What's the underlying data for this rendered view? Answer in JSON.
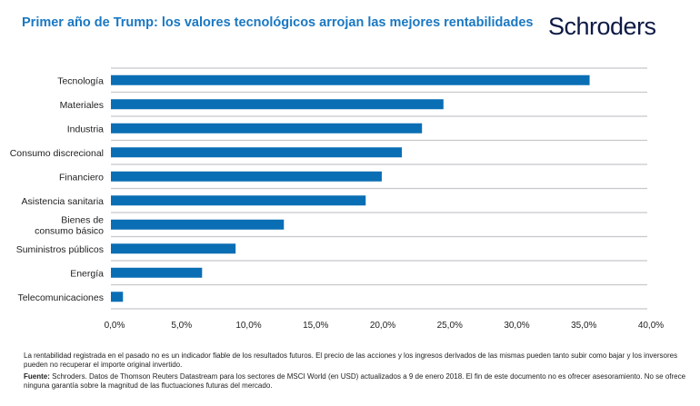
{
  "header": {
    "title": "Primer año de Trump: los valores tecnológicos arrojan las mejores rentabilidades",
    "logo_text": "Schroders"
  },
  "chart_data": {
    "type": "bar",
    "orientation": "horizontal",
    "categories": [
      "Tecnología",
      "Materiales",
      "Industria",
      "Consumo discrecional",
      "Financiero",
      "Asistencia sanitaria",
      "Bienes de consumo básico",
      "Suministros públicos",
      "Energía",
      "Telecomunicaciones"
    ],
    "category_lines": [
      [
        "Tecnología"
      ],
      [
        "Materiales"
      ],
      [
        "Industria"
      ],
      [
        "Consumo discrecional"
      ],
      [
        "Financiero"
      ],
      [
        "Asistencia sanitaria"
      ],
      [
        "Bienes de",
        "consumo básico"
      ],
      [
        "Suministros públicos"
      ],
      [
        "Energía"
      ],
      [
        "Telecomunicaciones"
      ]
    ],
    "values": [
      35.7,
      24.8,
      23.2,
      21.7,
      20.2,
      19.0,
      12.9,
      9.3,
      6.8,
      0.9
    ],
    "unit": "%",
    "xlim": [
      0,
      40
    ],
    "xticks": [
      0,
      5,
      10,
      15,
      20,
      25,
      30,
      35,
      40
    ],
    "xtick_labels": [
      "0,0%",
      "5,0%",
      "10,0%",
      "15,0%",
      "20,0%",
      "25,0%",
      "30,0%",
      "35,0%",
      "40,0%"
    ],
    "grid": true,
    "bar_color": "#0a6eb4",
    "grid_color": "#c8c8cc"
  },
  "footer": {
    "disclaimer": "La rentabilidad registrada en el pasado no es un indicador fiable de los resultados futuros. El precio de las acciones y los ingresos derivados de las mismas pueden tanto subir como bajar y los inversores pueden no recuperar el importe original invertido.",
    "source_label": "Fuente:",
    "source_text": " Schroders. Datos de Thomson Reuters Datastream para los sectores de MSCI World (en USD) actualizados a 9 de enero 2018. El fin de este documento no es ofrecer asesoramiento. No se ofrece ninguna garantía sobre la magnitud de las fluctuaciones futuras del mercado."
  }
}
